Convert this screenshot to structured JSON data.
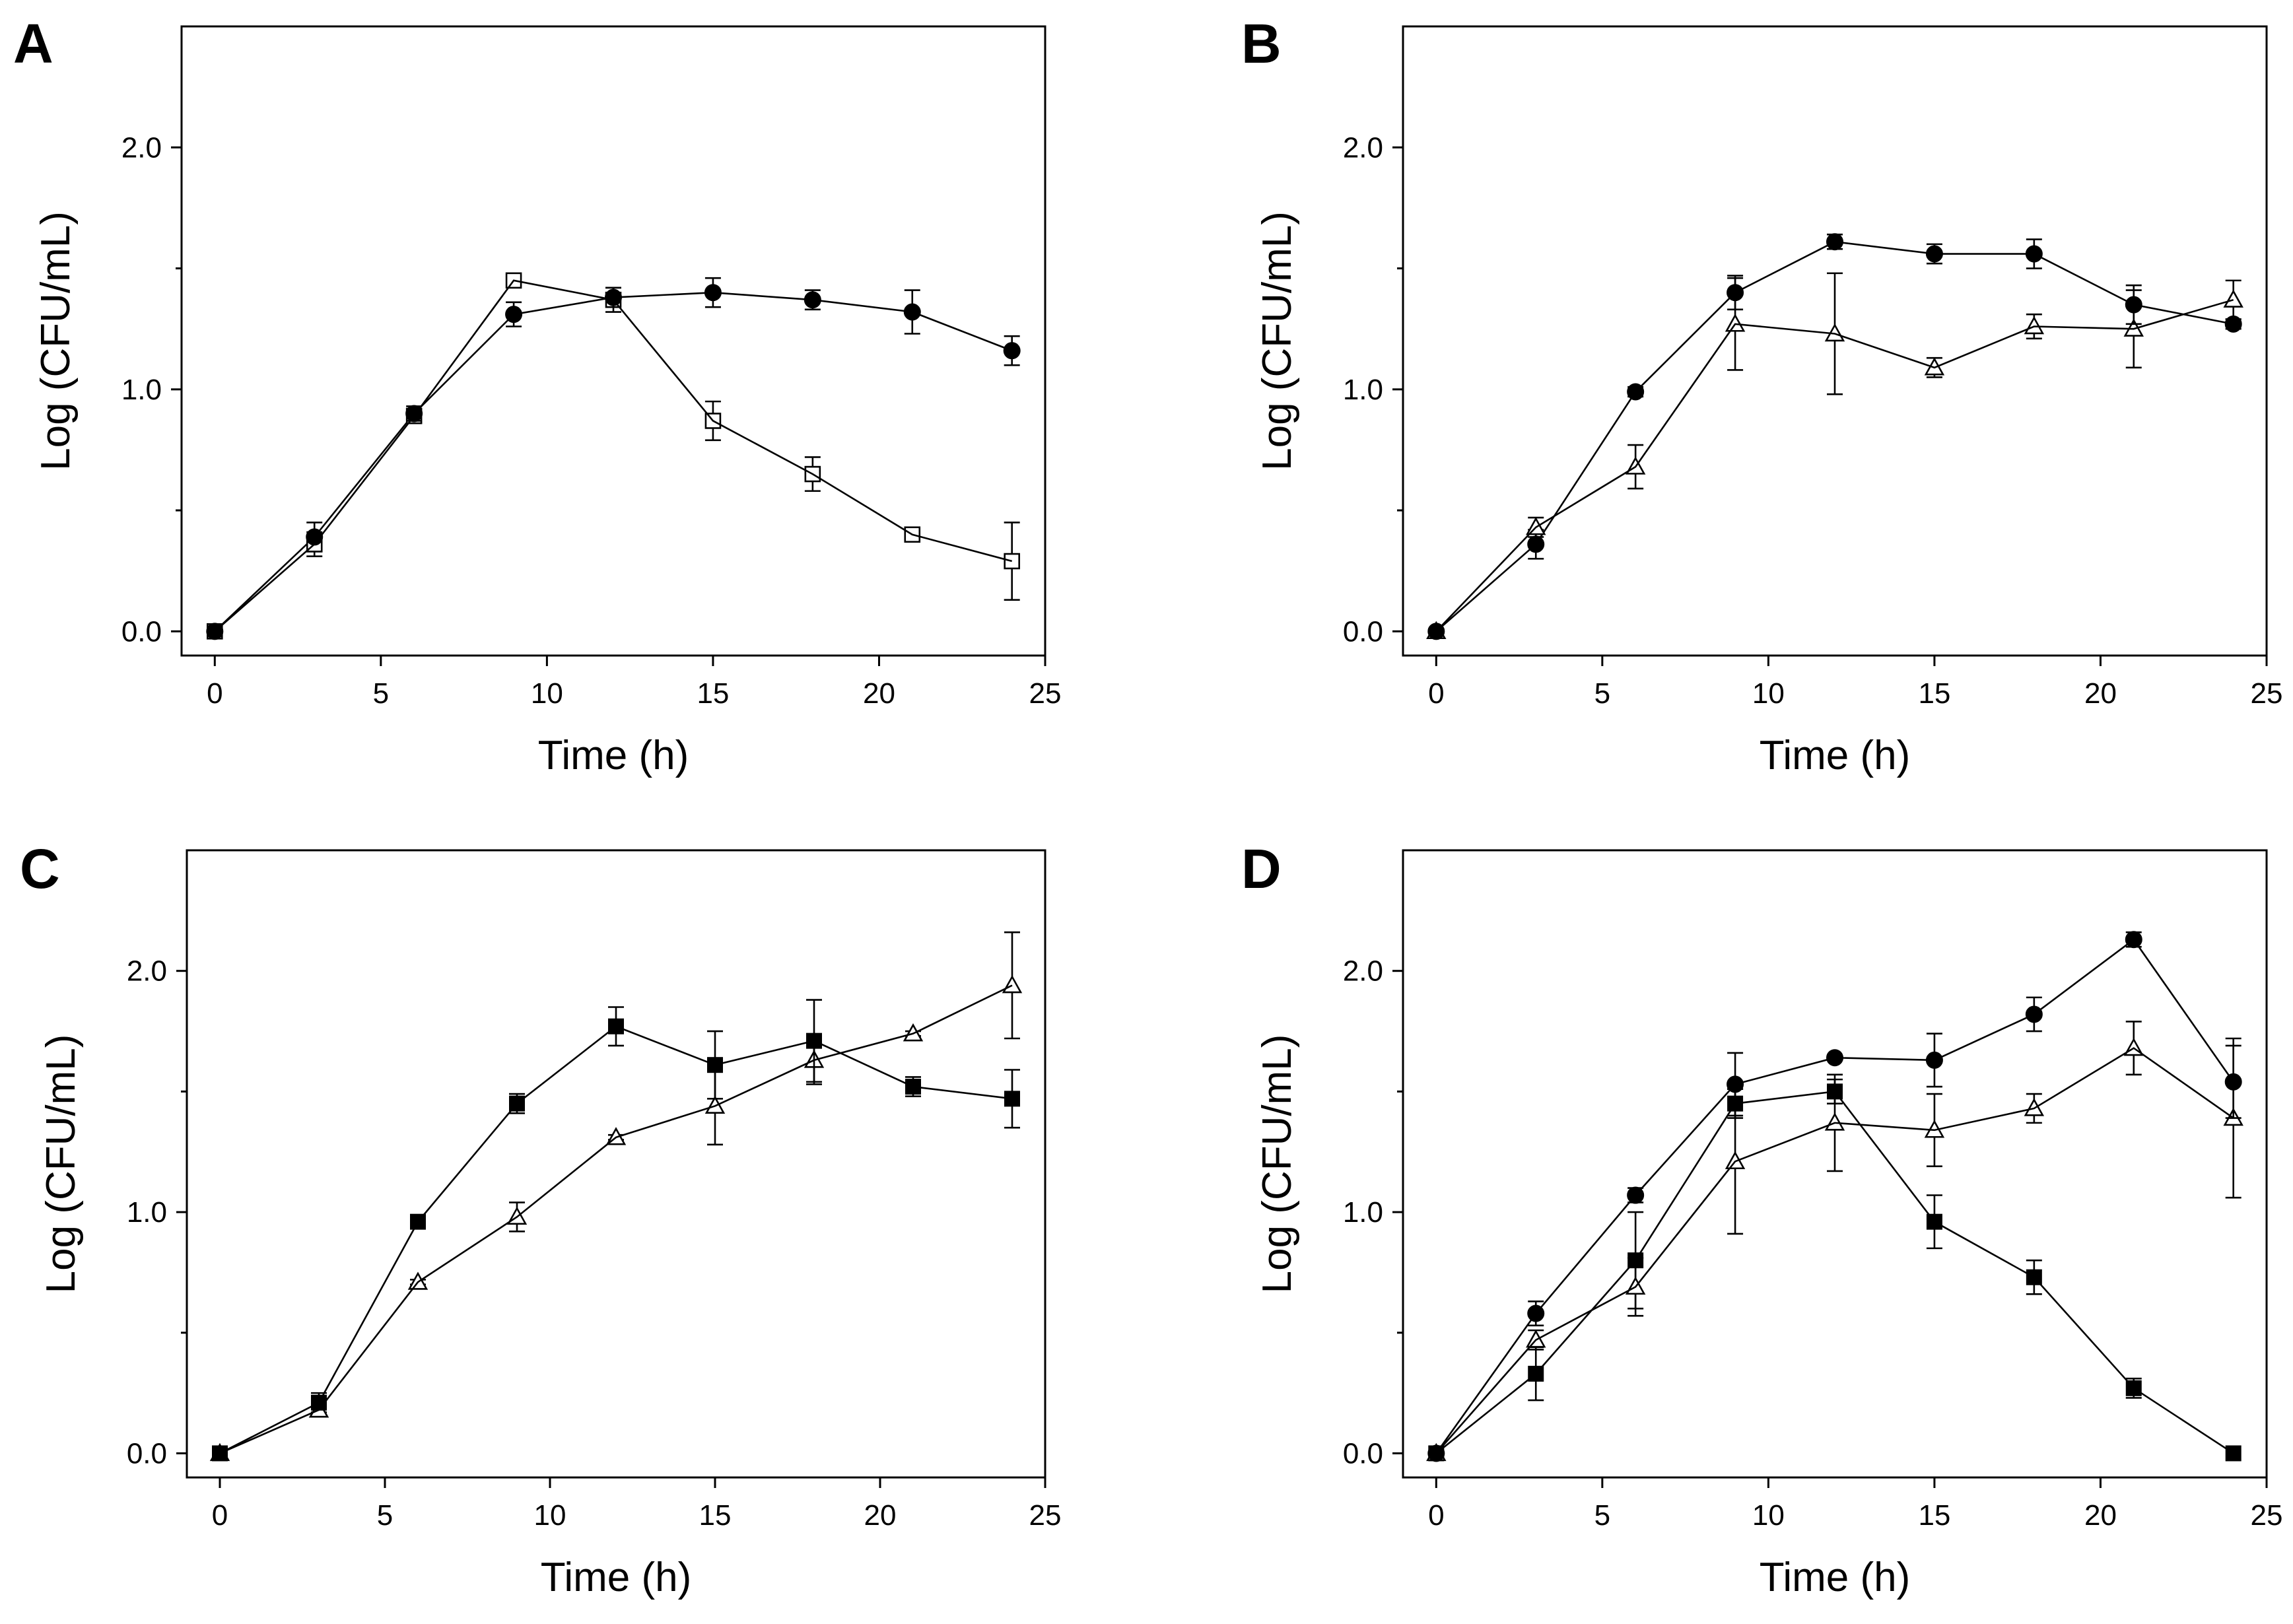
{
  "figure": {
    "panels": [
      "A",
      "B",
      "C",
      "D"
    ],
    "xlabel": "Time (h)",
    "ylabel": "Log (CFU/mL)"
  },
  "chart_data": [
    {
      "panel": "A",
      "type": "line",
      "xlabel": "Time (h)",
      "ylabel": "Log (CFU/mL)",
      "xlim": [
        -1,
        25
      ],
      "ylim": [
        -0.1,
        2.5
      ],
      "xticks": [
        "0",
        "5",
        "10",
        "15",
        "20",
        "25"
      ],
      "yticks": [
        "0.0",
        "1.0",
        "2.0"
      ],
      "series": [
        {
          "marker": "circle-filled",
          "x": [
            0,
            3,
            6,
            9,
            12,
            15,
            18,
            21,
            24
          ],
          "values": [
            0.0,
            0.39,
            0.9,
            1.31,
            1.38,
            1.4,
            1.37,
            1.32,
            1.16
          ],
          "errors": [
            0,
            0.06,
            0.03,
            0.05,
            0.04,
            0.06,
            0.04,
            0.09,
            0.06
          ]
        },
        {
          "marker": "square-open",
          "x": [
            0,
            3,
            6,
            9,
            12,
            15,
            18,
            21,
            24
          ],
          "values": [
            0.0,
            0.36,
            0.89,
            1.45,
            1.37,
            0.87,
            0.65,
            0.4,
            0.29
          ],
          "errors": [
            0,
            0.05,
            0.03,
            0.02,
            0.05,
            0.08,
            0.07,
            0.02,
            0.16
          ]
        }
      ]
    },
    {
      "panel": "B",
      "type": "line",
      "xlabel": "Time (h)",
      "ylabel": "Log (CFU/mL)",
      "xlim": [
        -1,
        25
      ],
      "ylim": [
        -0.1,
        2.5
      ],
      "xticks": [
        "0",
        "5",
        "10",
        "15",
        "20",
        "25"
      ],
      "yticks": [
        "0.0",
        "1.0",
        "2.0"
      ],
      "series": [
        {
          "marker": "circle-filled",
          "x": [
            0,
            3,
            6,
            9,
            12,
            15,
            18,
            21,
            24
          ],
          "values": [
            0.0,
            0.36,
            0.99,
            1.4,
            1.61,
            1.56,
            1.56,
            1.35,
            1.27
          ],
          "errors": [
            0,
            0.06,
            0.02,
            0.07,
            0.03,
            0.04,
            0.06,
            0.08,
            0.02
          ]
        },
        {
          "marker": "triangle-open",
          "x": [
            0,
            3,
            6,
            9,
            12,
            15,
            18,
            21,
            24
          ],
          "values": [
            0.0,
            0.43,
            0.68,
            1.27,
            1.23,
            1.09,
            1.26,
            1.25,
            1.37
          ],
          "errors": [
            0,
            0.04,
            0.09,
            0.19,
            0.25,
            0.04,
            0.05,
            0.16,
            0.08
          ]
        }
      ]
    },
    {
      "panel": "C",
      "type": "line",
      "xlabel": "Time (h)",
      "ylabel": "Log (CFU/mL)",
      "xlim": [
        -1,
        25
      ],
      "ylim": [
        -0.1,
        2.5
      ],
      "xticks": [
        "0",
        "5",
        "10",
        "15",
        "20",
        "25"
      ],
      "yticks": [
        "0.0",
        "1.0",
        "2.0"
      ],
      "series": [
        {
          "marker": "square-filled",
          "x": [
            0,
            3,
            6,
            9,
            12,
            15,
            18,
            21,
            24
          ],
          "values": [
            0.0,
            0.21,
            0.96,
            1.45,
            1.77,
            1.61,
            1.71,
            1.52,
            1.47
          ],
          "errors": [
            0,
            0.04,
            0.02,
            0.04,
            0.08,
            0.14,
            0.17,
            0.04,
            0.12
          ]
        },
        {
          "marker": "triangle-open",
          "x": [
            0,
            3,
            6,
            9,
            12,
            15,
            18,
            21,
            24
          ],
          "values": [
            0.0,
            0.18,
            0.71,
            0.98,
            1.31,
            1.44,
            1.63,
            1.74,
            1.94
          ],
          "errors": [
            0,
            0.02,
            0.01,
            0.06,
            0.01,
            0.16,
            0.1,
            0.01,
            0.22
          ]
        }
      ]
    },
    {
      "panel": "D",
      "type": "line",
      "xlabel": "Time (h)",
      "ylabel": "Log (CFU/mL)",
      "xlim": [
        -1,
        25
      ],
      "ylim": [
        -0.1,
        2.5
      ],
      "xticks": [
        "0",
        "5",
        "10",
        "15",
        "20",
        "25"
      ],
      "yticks": [
        "0.0",
        "1.0",
        "2.0"
      ],
      "series": [
        {
          "marker": "circle-filled",
          "x": [
            0,
            3,
            6,
            9,
            12,
            15,
            18,
            21,
            24
          ],
          "values": [
            0.0,
            0.58,
            1.07,
            1.53,
            1.64,
            1.63,
            1.82,
            2.13,
            1.54
          ],
          "errors": [
            0,
            0.05,
            0.03,
            0.13,
            0.01,
            0.11,
            0.07,
            0.03,
            0.15
          ]
        },
        {
          "marker": "triangle-open",
          "x": [
            0,
            3,
            6,
            9,
            12,
            15,
            18,
            21,
            24
          ],
          "values": [
            0.0,
            0.47,
            0.69,
            1.21,
            1.37,
            1.34,
            1.43,
            1.68,
            1.39
          ],
          "errors": [
            0,
            0.04,
            0.12,
            0.3,
            0.2,
            0.15,
            0.06,
            0.11,
            0.33
          ]
        },
        {
          "marker": "square-filled",
          "x": [
            0,
            3,
            6,
            9,
            12,
            15,
            18,
            21,
            24
          ],
          "values": [
            0.0,
            0.33,
            0.8,
            1.45,
            1.5,
            0.96,
            0.73,
            0.27,
            0.0
          ],
          "errors": [
            0,
            0.11,
            0.2,
            0.06,
            0.05,
            0.11,
            0.07,
            0.04,
            0
          ]
        }
      ]
    }
  ]
}
